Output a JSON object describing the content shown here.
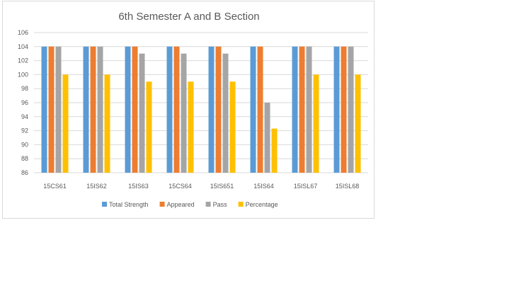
{
  "chart_data": {
    "type": "bar",
    "title": "6th Semester A and B Section",
    "xlabel": "",
    "ylabel": "",
    "categories": [
      "15CS61",
      "15IS62",
      "15IS63",
      "15CS64",
      "15IS651",
      "15IS64",
      "15ISL67",
      "15ISL68"
    ],
    "series": [
      {
        "name": "Total Strength",
        "color": "#5b9bd5",
        "values": [
          104,
          104,
          104,
          104,
          104,
          104,
          104,
          104
        ]
      },
      {
        "name": "Appeared",
        "color": "#ed7d31",
        "values": [
          104,
          104,
          104,
          104,
          104,
          104,
          104,
          104
        ]
      },
      {
        "name": "Pass",
        "color": "#a5a5a5",
        "values": [
          104,
          104,
          103,
          103,
          103,
          96,
          104,
          104
        ]
      },
      {
        "name": "Percentage",
        "color": "#ffc000",
        "values": [
          100,
          100,
          99,
          99,
          99,
          92.3,
          100,
          100
        ]
      }
    ],
    "ylim": [
      86,
      106
    ],
    "yticks": [
      86,
      88,
      90,
      92,
      94,
      96,
      98,
      100,
      102,
      104,
      106
    ],
    "grid": true,
    "legend_position": "bottom"
  }
}
